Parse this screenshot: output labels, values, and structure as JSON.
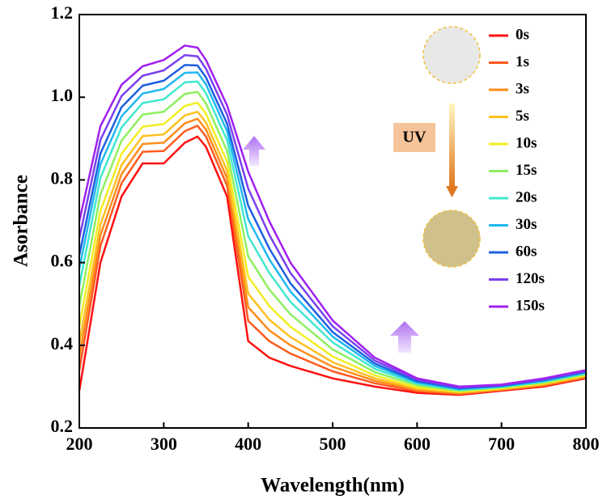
{
  "chart_data": {
    "type": "line",
    "x_label": "Wavelength(nm)",
    "y_label": "Asorbance",
    "annotations": [
      "UV"
    ],
    "x": [
      200,
      225,
      250,
      275,
      300,
      325,
      340,
      350,
      375,
      400,
      425,
      450,
      500,
      550,
      600,
      650,
      700,
      750,
      800
    ],
    "xlim": [
      200,
      800
    ],
    "xticks": [
      200,
      300,
      400,
      500,
      600,
      700,
      800
    ],
    "ylim": [
      0.2,
      1.2
    ],
    "yticks": [
      0.2,
      0.4,
      0.6,
      0.8,
      {
        "value": 1,
        "label": "1.0"
      },
      1.2
    ],
    "series": [
      {
        "name": "0s",
        "color": "#ff1010",
        "values": [
          0.29,
          0.6,
          0.76,
          0.84,
          0.84,
          0.89,
          0.905,
          0.88,
          0.76,
          0.41,
          0.37,
          0.35,
          0.32,
          0.3,
          0.285,
          0.28,
          0.29,
          0.3,
          0.32
        ]
      },
      {
        "name": "1s",
        "color": "#ff5a1e",
        "values": [
          0.339,
          0.64,
          0.792,
          0.868,
          0.87,
          0.918,
          0.931,
          0.905,
          0.786,
          0.459,
          0.41,
          0.38,
          0.337,
          0.308,
          0.289,
          0.282,
          0.292,
          0.302,
          0.322
        ]
      },
      {
        "name": "3s",
        "color": "#ff8c1a",
        "values": [
          0.372,
          0.666,
          0.814,
          0.887,
          0.89,
          0.937,
          0.948,
          0.922,
          0.804,
          0.492,
          0.436,
          0.4,
          0.348,
          0.314,
          0.292,
          0.284,
          0.293,
          0.304,
          0.324
        ]
      },
      {
        "name": "5s",
        "color": "#ffc020",
        "values": [
          0.405,
          0.692,
          0.836,
          0.906,
          0.91,
          0.956,
          0.965,
          0.939,
          0.822,
          0.525,
          0.462,
          0.42,
          0.359,
          0.32,
          0.295,
          0.286,
          0.294,
          0.306,
          0.326
        ]
      },
      {
        "name": "10s",
        "color": "#f2ee22",
        "values": [
          0.446,
          0.725,
          0.863,
          0.929,
          0.935,
          0.979,
          0.987,
          0.96,
          0.844,
          0.566,
          0.495,
          0.445,
          0.373,
          0.327,
          0.298,
          0.288,
          0.296,
          0.308,
          0.328
        ]
      },
      {
        "name": "15s",
        "color": "#8ef060",
        "values": [
          0.495,
          0.765,
          0.895,
          0.958,
          0.965,
          1.008,
          1.013,
          0.985,
          0.87,
          0.615,
          0.535,
          0.475,
          0.39,
          0.335,
          0.303,
          0.29,
          0.298,
          0.31,
          0.33
        ]
      },
      {
        "name": "20s",
        "color": "#40e8d0",
        "values": [
          0.544,
          0.805,
          0.927,
          0.986,
          0.995,
          1.036,
          1.038,
          1.01,
          0.896,
          0.664,
          0.575,
          0.505,
          0.407,
          0.343,
          0.307,
          0.292,
          0.299,
          0.312,
          0.332
        ]
      },
      {
        "name": "30s",
        "color": "#20b8f0",
        "values": [
          0.585,
          0.838,
          0.954,
          1.009,
          1.02,
          1.059,
          1.06,
          1.031,
          0.918,
          0.705,
          0.608,
          0.53,
          0.421,
          0.35,
          0.31,
          0.294,
          0.301,
          0.314,
          0.334
        ]
      },
      {
        "name": "60s",
        "color": "#1e5fe0",
        "values": [
          0.618,
          0.864,
          0.976,
          1.028,
          1.04,
          1.078,
          1.077,
          1.048,
          0.936,
          0.738,
          0.634,
          0.55,
          0.432,
          0.356,
          0.313,
          0.296,
          0.302,
          0.316,
          0.336
        ]
      },
      {
        "name": "120s",
        "color": "#7a40f0",
        "values": [
          0.659,
          0.897,
          1.003,
          1.052,
          1.065,
          1.102,
          1.099,
          1.069,
          0.958,
          0.779,
          0.667,
          0.575,
          0.446,
          0.363,
          0.317,
          0.298,
          0.304,
          0.318,
          0.338
        ]
      },
      {
        "name": "150s",
        "color": "#a020f0",
        "values": [
          0.7,
          0.93,
          1.03,
          1.075,
          1.09,
          1.125,
          1.12,
          1.09,
          0.98,
          0.82,
          0.7,
          0.6,
          0.46,
          0.37,
          0.32,
          0.3,
          0.305,
          0.32,
          0.34
        ]
      }
    ]
  }
}
